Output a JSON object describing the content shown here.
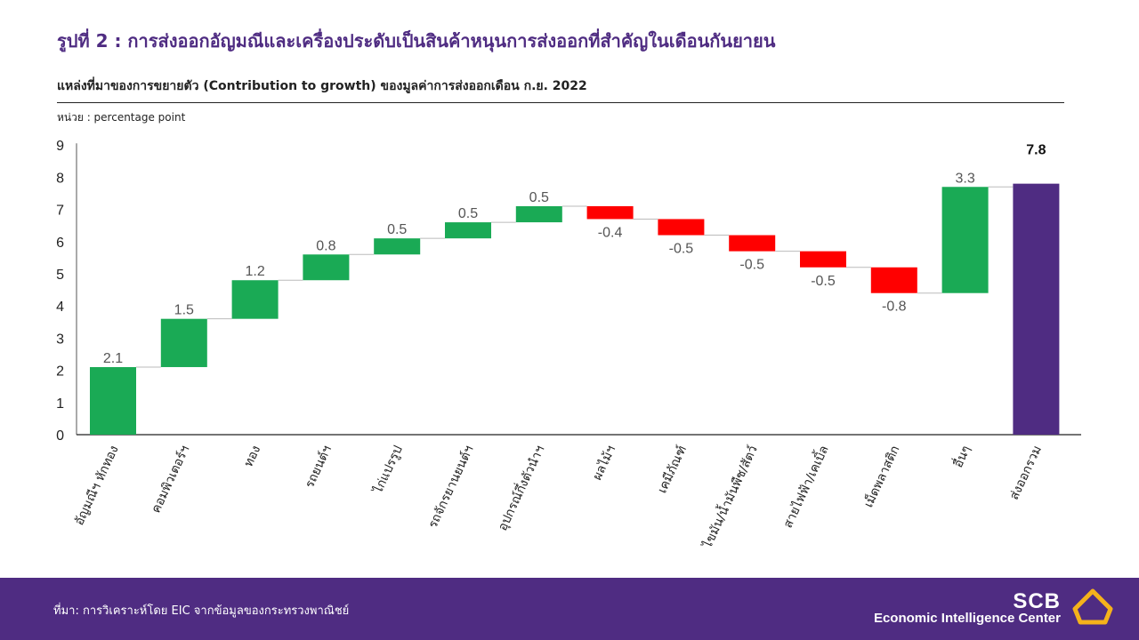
{
  "header": {
    "title": "รูปที่ 2 : การส่งออกอัญมณีและเครื่องประดับเป็นสินค้าหนุนการส่งออกที่สำคัญในเดือนกันยายน",
    "subtitle": "แหล่งที่มาของการขยายตัว (Contribution to growth) ของมูลค่าการส่งออกเดือน ก.ย. 2022",
    "unit": "หน่วย : percentage  point"
  },
  "chart_data": {
    "type": "waterfall",
    "categories": [
      "อัญมณีฯ หักทอง",
      "คอมพิวเตอร์ฯ",
      "ทอง",
      "รถยนต์ฯ",
      "ไก่แปรรูป",
      "รถจักรยานยนต์ฯ",
      "อุปกรณ์กึ่งตัวนำฯ",
      "ผลไม้ฯ",
      "เคมีภัณฑ์",
      "ไขมัน/น้ำมันพืช/สัตว์",
      "สายไฟฟ้า/เคเบิ้ล",
      "เม็ดพลาสติก",
      "อื่นๆ",
      "ส่งออกรวม"
    ],
    "values": [
      2.1,
      1.5,
      1.2,
      0.8,
      0.5,
      0.5,
      0.5,
      -0.4,
      -0.5,
      -0.5,
      -0.5,
      -0.8,
      3.3,
      7.8
    ],
    "labels": [
      "2.1",
      "1.5",
      "1.2",
      "0.8",
      "0.5",
      "0.5",
      "0.5",
      "-0.4",
      "-0.5",
      "-0.5",
      "-0.5",
      "-0.8",
      "3.3",
      "7.8"
    ],
    "total_index": 13,
    "ylim": [
      0,
      9
    ],
    "yticks": [
      "0",
      "1",
      "2",
      "3",
      "4",
      "5",
      "6",
      "7",
      "8",
      "9"
    ],
    "colors": {
      "positive": "#1aaa55",
      "negative": "#ff0000",
      "total": "#4f2c82"
    },
    "xlabel": "",
    "ylabel": "",
    "grid": false
  },
  "footer": {
    "source": "ที่มา: การวิเคราะห์โดย EIC จากข้อมูลของกระทรวงพาณิชย์",
    "brand": "SCB",
    "tagline": "Economic Intelligence Center",
    "logo_icon": "scb-lotus-icon"
  }
}
